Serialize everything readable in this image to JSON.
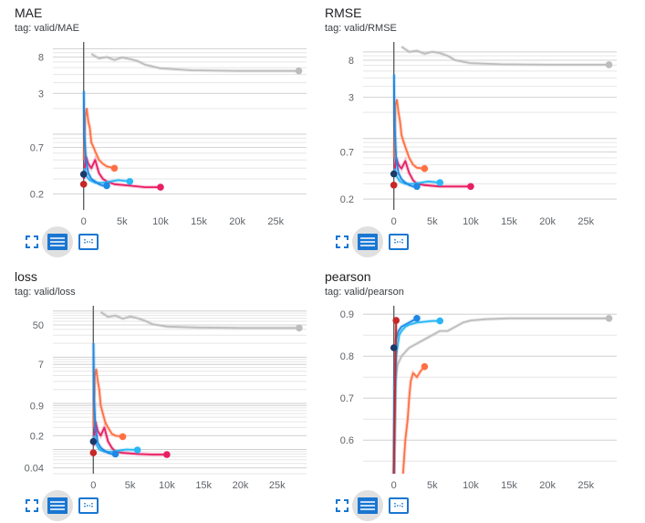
{
  "colors": {
    "grey": "#bdbdbd",
    "orange": "#ff7043",
    "red": "#c62828",
    "pink": "#e91e63",
    "blue_dark": "#0d47a1",
    "blue": "#1e88e5",
    "light_blue": "#29b6f6",
    "navy": "#1a3a6b",
    "icon_blue": "#1976d2"
  },
  "toolbar": {
    "fullscreen_icon": "fullscreen-icon",
    "series_icon": "series-list-icon",
    "fit_icon": "fit-domain-icon"
  },
  "cards": [
    {
      "title": "MAE",
      "tag": "tag: valid/MAE",
      "chart_data": {
        "type": "line",
        "ylog": true,
        "xlim": [
          -4000,
          29000
        ],
        "ylim": [
          0.13,
          12
        ],
        "yticks": [
          {
            "v": 8,
            "label": "8"
          },
          {
            "v": 3,
            "label": "3"
          },
          {
            "v": 0.7,
            "label": "0.7"
          },
          {
            "v": 0.2,
            "label": "0.2"
          }
        ],
        "xticks": [
          {
            "v": 0,
            "label": "0"
          },
          {
            "v": 5000,
            "label": "5k"
          },
          {
            "v": 10000,
            "label": "10k"
          },
          {
            "v": 15000,
            "label": "15k"
          },
          {
            "v": 20000,
            "label": "20k"
          },
          {
            "v": 25000,
            "label": "25k"
          }
        ],
        "series": [
          {
            "color": "grey",
            "x": [
              1000,
              2000,
              3000,
              4000,
              5000,
              6000,
              7000,
              8000,
              10000,
              14000,
              20000,
              28000
            ],
            "y": [
              8.7,
              7.7,
              8.0,
              7.4,
              7.9,
              7.6,
              7.2,
              6.5,
              5.9,
              5.6,
              5.5,
              5.5
            ]
          },
          {
            "color": "orange",
            "x": [
              50,
              200,
              400,
              600,
              800,
              1000,
              1300,
              1600,
              2000,
              2500,
              3000,
              4000
            ],
            "y": [
              0.5,
              1.6,
              2.0,
              1.4,
              1.2,
              0.8,
              0.7,
              0.6,
              0.5,
              0.45,
              0.42,
              0.4
            ]
          },
          {
            "color": "pink",
            "x": [
              50,
              300,
              600,
              1000,
              1500,
              2000,
              2500,
              3000,
              4000,
              6000,
              8000,
              10000
            ],
            "y": [
              0.3,
              0.55,
              0.45,
              0.4,
              0.5,
              0.35,
              0.3,
              0.28,
              0.26,
              0.25,
              0.24,
              0.24
            ]
          },
          {
            "color": "light_blue",
            "x": [
              50,
              400,
              800,
              1500,
              2500,
              3500,
              4500,
              6000
            ],
            "y": [
              0.4,
              0.32,
              0.29,
              0.27,
              0.27,
              0.28,
              0.29,
              0.28
            ]
          },
          {
            "color": "blue",
            "x": [
              20,
              100,
              300,
              600,
              1000,
              1500,
              2000,
              2500,
              3000
            ],
            "y": [
              3.2,
              1.0,
              0.5,
              0.35,
              0.3,
              0.28,
              0.26,
              0.25,
              0.25
            ]
          },
          {
            "color": "red",
            "x": [
              0
            ],
            "y": [
              0.26
            ]
          },
          {
            "color": "navy",
            "x": [
              0
            ],
            "y": [
              0.34
            ]
          }
        ]
      }
    },
    {
      "title": "RMSE",
      "tag": "tag: valid/RMSE",
      "chart_data": {
        "type": "line",
        "ylog": true,
        "xlim": [
          -4000,
          29000
        ],
        "ylim": [
          0.15,
          13
        ],
        "yticks": [
          {
            "v": 8,
            "label": "8"
          },
          {
            "v": 3,
            "label": "3"
          },
          {
            "v": 0.7,
            "label": "0.7"
          },
          {
            "v": 0.2,
            "label": "0.2"
          }
        ],
        "xticks": [
          {
            "v": 0,
            "label": "0"
          },
          {
            "v": 5000,
            "label": "5k"
          },
          {
            "v": 10000,
            "label": "10k"
          },
          {
            "v": 15000,
            "label": "15k"
          },
          {
            "v": 20000,
            "label": "20k"
          },
          {
            "v": 25000,
            "label": "25k"
          }
        ],
        "series": [
          {
            "color": "grey",
            "x": [
              1000,
              2000,
              3000,
              4000,
              5000,
              6000,
              7000,
              8000,
              10000,
              14000,
              20000,
              28000
            ],
            "y": [
              11.5,
              10.0,
              10.3,
              9.5,
              10.0,
              9.7,
              9.0,
              8.0,
              7.4,
              7.2,
              7.1,
              7.1
            ]
          },
          {
            "color": "orange",
            "x": [
              50,
              200,
              400,
              600,
              800,
              1000,
              1300,
              1600,
              2000,
              2500,
              3000,
              4000
            ],
            "y": [
              0.6,
              2.4,
              2.8,
              2.0,
              1.6,
              1.1,
              0.9,
              0.75,
              0.6,
              0.5,
              0.46,
              0.45
            ]
          },
          {
            "color": "pink",
            "x": [
              50,
              300,
              600,
              1000,
              1500,
              2000,
              2500,
              3000,
              4000,
              6000,
              8000,
              10000
            ],
            "y": [
              0.36,
              0.6,
              0.5,
              0.45,
              0.55,
              0.4,
              0.33,
              0.3,
              0.29,
              0.28,
              0.28,
              0.28
            ]
          },
          {
            "color": "light_blue",
            "x": [
              50,
              400,
              800,
              1500,
              2500,
              3500,
              4500,
              6000
            ],
            "y": [
              0.45,
              0.36,
              0.32,
              0.3,
              0.3,
              0.31,
              0.32,
              0.31
            ]
          },
          {
            "color": "blue",
            "x": [
              20,
              100,
              300,
              600,
              1000,
              1500,
              2000,
              2500,
              3000
            ],
            "y": [
              5.5,
              1.5,
              0.6,
              0.4,
              0.34,
              0.31,
              0.29,
              0.28,
              0.28
            ]
          },
          {
            "color": "red",
            "x": [
              0
            ],
            "y": [
              0.29
            ]
          },
          {
            "color": "navy",
            "x": [
              0
            ],
            "y": [
              0.39
            ]
          }
        ]
      }
    },
    {
      "title": "loss",
      "tag": "tag: valid/loss",
      "chart_data": {
        "type": "line",
        "ylog": true,
        "xlim": [
          -5500,
          29000
        ],
        "ylim": [
          0.03,
          130
        ],
        "yticks": [
          {
            "v": 50,
            "label": "50"
          },
          {
            "v": 7,
            "label": "7"
          },
          {
            "v": 0.9,
            "label": "0.9"
          },
          {
            "v": 0.2,
            "label": "0.2"
          },
          {
            "v": 0.04,
            "label": "0.04"
          }
        ],
        "xticks": [
          {
            "v": 0,
            "label": "0"
          },
          {
            "v": 5000,
            "label": "5k"
          },
          {
            "v": 10000,
            "label": "10k"
          },
          {
            "v": 15000,
            "label": "15k"
          },
          {
            "v": 20000,
            "label": "20k"
          },
          {
            "v": 25000,
            "label": "25k"
          }
        ],
        "series": [
          {
            "color": "grey",
            "x": [
              1000,
              2000,
              3000,
              4000,
              5000,
              6000,
              7000,
              8000,
              10000,
              14000,
              20000,
              28000
            ],
            "y": [
              95,
              75,
              80,
              68,
              76,
              70,
              62,
              52,
              46,
              44,
              43,
              43
            ]
          },
          {
            "color": "orange",
            "x": [
              50,
              200,
              400,
              600,
              800,
              1000,
              1300,
              1600,
              2000,
              2500,
              3000,
              4000
            ],
            "y": [
              0.3,
              4.0,
              5.5,
              3.0,
              2.0,
              0.9,
              0.6,
              0.4,
              0.3,
              0.22,
              0.2,
              0.19
            ]
          },
          {
            "color": "pink",
            "x": [
              50,
              300,
              600,
              1000,
              1500,
              2000,
              2500,
              3000,
              4000,
              6000,
              8000,
              10000
            ],
            "y": [
              0.12,
              0.4,
              0.25,
              0.2,
              0.3,
              0.15,
              0.11,
              0.09,
              0.085,
              0.08,
              0.078,
              0.078
            ]
          },
          {
            "color": "light_blue",
            "x": [
              50,
              400,
              800,
              1500,
              2500,
              3500,
              4500,
              6000
            ],
            "y": [
              0.2,
              0.13,
              0.1,
              0.09,
              0.09,
              0.095,
              0.1,
              0.098
            ]
          },
          {
            "color": "blue",
            "x": [
              20,
              100,
              300,
              600,
              1000,
              1500,
              2000,
              2500,
              3000
            ],
            "y": [
              20,
              1.2,
              0.3,
              0.14,
              0.11,
              0.095,
              0.085,
              0.08,
              0.08
            ]
          },
          {
            "color": "red",
            "x": [
              0
            ],
            "y": [
              0.085
            ]
          },
          {
            "color": "navy",
            "x": [
              0
            ],
            "y": [
              0.15
            ]
          }
        ]
      }
    },
    {
      "title": "pearson",
      "tag": "tag: valid/pearson",
      "chart_data": {
        "type": "line",
        "ylog": false,
        "xlim": [
          -4000,
          29000
        ],
        "ylim": [
          0.52,
          0.92
        ],
        "yticks": [
          {
            "v": 0.9,
            "label": "0.9"
          },
          {
            "v": 0.8,
            "label": "0.8"
          },
          {
            "v": 0.7,
            "label": "0.7"
          },
          {
            "v": 0.6,
            "label": "0.6"
          }
        ],
        "xticks": [
          {
            "v": 0,
            "label": "0"
          },
          {
            "v": 5000,
            "label": "5k"
          },
          {
            "v": 10000,
            "label": "10k"
          },
          {
            "v": 15000,
            "label": "15k"
          },
          {
            "v": 20000,
            "label": "20k"
          },
          {
            "v": 25000,
            "label": "25k"
          }
        ],
        "series": [
          {
            "color": "grey",
            "x": [
              0,
              500,
              1000,
              2000,
              3000,
              4000,
              5000,
              6000,
              7000,
              8000,
              9000,
              10000,
              12000,
              15000,
              20000,
              28000
            ],
            "y": [
              0.72,
              0.78,
              0.8,
              0.82,
              0.83,
              0.84,
              0.85,
              0.86,
              0.86,
              0.87,
              0.88,
              0.885,
              0.888,
              0.89,
              0.89,
              0.89
            ]
          },
          {
            "color": "blue",
            "x": [
              10,
              100,
              300,
              600,
              1000,
              1500,
              2000,
              2500,
              3000
            ],
            "y": [
              0.52,
              0.75,
              0.84,
              0.86,
              0.87,
              0.875,
              0.88,
              0.885,
              0.89
            ]
          },
          {
            "color": "light_blue",
            "x": [
              0,
              300,
              700,
              1000,
              1500,
              2000,
              3000,
              4000,
              5000,
              6000
            ],
            "y": [
              0.52,
              0.8,
              0.85,
              0.86,
              0.87,
              0.875,
              0.88,
              0.882,
              0.884,
              0.884
            ]
          },
          {
            "color": "orange",
            "x": [
              1200,
              1500,
              1800,
              2000,
              2200,
              2500,
              3000,
              3500,
              4000
            ],
            "y": [
              0.52,
              0.6,
              0.65,
              0.7,
              0.74,
              0.76,
              0.75,
              0.765,
              0.775
            ]
          },
          {
            "color": "red",
            "x": [
              0,
              300
            ],
            "y": [
              0.52,
              0.885
            ]
          },
          {
            "color": "navy",
            "x": [
              0
            ],
            "y": [
              0.82
            ]
          }
        ]
      }
    }
  ]
}
